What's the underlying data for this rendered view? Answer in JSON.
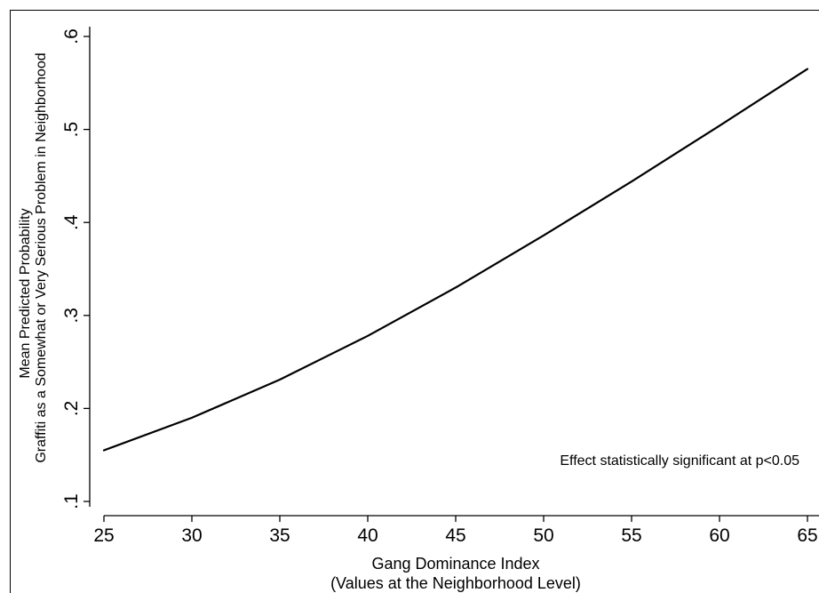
{
  "chart_data": {
    "type": "line",
    "x": [
      25,
      30,
      35,
      40,
      45,
      50,
      55,
      60,
      65
    ],
    "series": [
      {
        "values": [
          0.155,
          0.19,
          0.231,
          0.278,
          0.33,
          0.386,
          0.444,
          0.504,
          0.565
        ]
      }
    ],
    "xticks": [
      25,
      30,
      35,
      40,
      45,
      50,
      55,
      60,
      65
    ],
    "xtick_labels": [
      "25",
      "30",
      "35",
      "40",
      "45",
      "50",
      "55",
      "60",
      "65"
    ],
    "yticks": [
      0.1,
      0.2,
      0.3,
      0.4,
      0.5,
      0.6
    ],
    "ytick_labels": [
      ".1",
      ".2",
      ".3",
      ".4",
      ".5",
      ".6"
    ],
    "xlabel": "Gang Dominance Index",
    "xlabel_line2": "(Values at the Neighborhood Level)",
    "ylabel": "Mean Predicted Probability",
    "ylabel_line2": "Graffiti as a Somewhat or Very Serious Problem in Neighborhood",
    "annotation": "Effect statistically significant at p<0.05",
    "xlim": [
      25,
      65
    ],
    "ylim": [
      0.1,
      0.6
    ],
    "grid": false,
    "line_color": "#000000"
  }
}
